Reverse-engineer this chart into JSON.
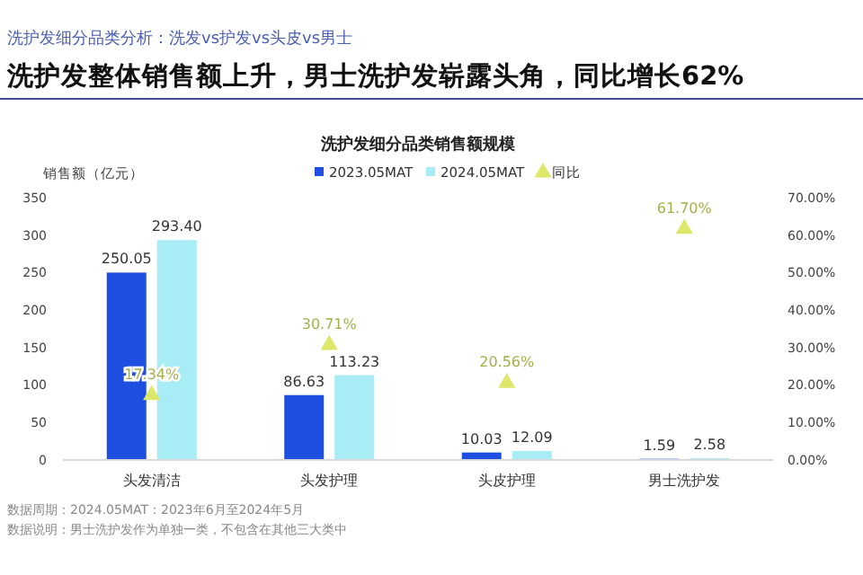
{
  "chart_data": {
    "type": "bar",
    "title": "洗护发整体销售额上升，男士洗护发崭露头角，同比增长62%",
    "subtitle": "洗护发细分品类销售额规模",
    "ylabel": "销售额（亿元）",
    "annotations": [
      "洗护发细分品类分析：洗发vs护发vs头皮vs男士",
      "数据周期：2024.05MAT：2023年6月至2024年5月",
      "数据说明：男士洗护发作为单独一类，不包含在其他三大类中"
    ],
    "categories": [
      "头发清洁",
      "头发护理",
      "头皮护理",
      "男士洗护发"
    ],
    "series": [
      {
        "name": "2023.05MAT",
        "color": "#1f4fe0",
        "values": [
          250.05,
          86.63,
          10.03,
          1.59
        ],
        "value_labels": [
          "250.05",
          "86.63",
          "10.03",
          "1.59"
        ]
      },
      {
        "name": "2024.05MAT",
        "color": "#a8ecf5",
        "values": [
          293.4,
          113.23,
          12.09,
          2.58
        ],
        "value_labels": [
          "293.40",
          "113.23",
          "12.09",
          "2.58"
        ]
      },
      {
        "name": "同比",
        "type": "scatter",
        "axis": "y2",
        "marker": "triangle",
        "color": "#dde86a",
        "values": [
          17.34,
          30.71,
          20.56,
          61.7
        ],
        "value_labels": [
          "17.34%",
          "30.71%",
          "20.56%",
          "61.70%"
        ]
      }
    ],
    "ylim": [
      0,
      350
    ],
    "yticks": [
      0,
      50,
      100,
      150,
      200,
      250,
      300,
      350
    ],
    "y2lim": [
      0,
      70
    ],
    "y2ticks": [
      {
        "value": 0,
        "label": "0.00%"
      },
      {
        "value": 10,
        "label": "10.00%"
      },
      {
        "value": 20,
        "label": "20.00%"
      },
      {
        "value": 30,
        "label": "30.00%"
      },
      {
        "value": 40,
        "label": "40.00%"
      },
      {
        "value": 50,
        "label": "50.00%"
      },
      {
        "value": 60,
        "label": "60.00%"
      },
      {
        "value": 70,
        "label": "70.00%"
      }
    ],
    "legend": "top",
    "grid": false
  }
}
